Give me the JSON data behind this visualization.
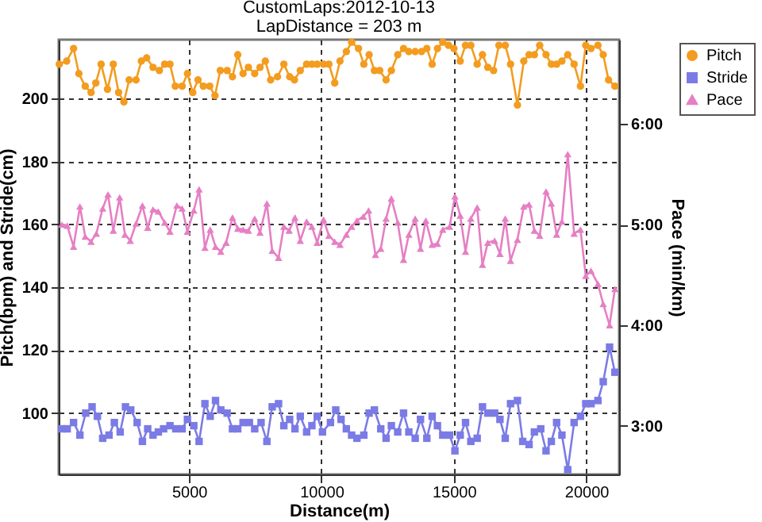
{
  "chart_data": {
    "type": "line",
    "title": "CustomLaps:2012-10-13",
    "subtitle": "LapDistance = 203 m",
    "xlabel": "Distance(m)",
    "ylabel": "Pitch(bpm) and Stride(cm)",
    "y2label": "Pace (min/km)",
    "xlim": [
      80,
      21240
    ],
    "xticks": [
      5000,
      10000,
      15000,
      20000
    ],
    "ylim": [
      80.5,
      218.8
    ],
    "yticks": [
      100,
      120,
      140,
      160,
      180,
      200
    ],
    "y2lim": [
      2.516,
      6.838
    ],
    "y2ticks": [
      {
        "value": 3,
        "label": "3:00"
      },
      {
        "value": 4,
        "label": "4:00"
      },
      {
        "value": 5,
        "label": "5:00"
      },
      {
        "value": 6,
        "label": "6:00"
      }
    ],
    "grid": true,
    "legend": "top right",
    "line_style": "solid",
    "series": [
      {
        "name": "Pitch",
        "color": "#f39c1f",
        "marker": "circle",
        "x": [
          100,
          380,
          640,
          840,
          1080,
          1300,
          1480,
          1680,
          1920,
          2140,
          2340,
          2540,
          2740,
          3000,
          3200,
          3400,
          3640,
          3880,
          4080,
          4280,
          4480,
          4740,
          4940,
          5140,
          5340,
          5540,
          5780,
          5980,
          6180,
          6440,
          6640,
          6840,
          7040,
          7240,
          7480,
          7680,
          7880,
          8080,
          8340,
          8580,
          8800,
          8980,
          9200,
          9440,
          9640,
          9840,
          10080,
          10280,
          10500,
          10700,
          10940,
          11140,
          11400,
          11600,
          11800,
          12000,
          12200,
          12440,
          12640,
          12880,
          13100,
          13300,
          13540,
          13780,
          13980,
          14180,
          14380,
          14580,
          14800,
          15000,
          15240,
          15440,
          15640,
          15880,
          16080,
          16280,
          16500,
          16700,
          16940,
          17140,
          17400,
          17640,
          17840,
          18040,
          18240,
          18480,
          18680,
          18880,
          19080,
          19300,
          19540,
          19780,
          19980,
          20180,
          20440,
          20640,
          20840,
          21080
        ],
        "values": [
          211,
          212,
          216,
          208,
          204,
          202,
          205,
          211,
          203,
          211,
          202,
          199,
          206,
          206,
          212,
          213,
          210,
          209,
          211,
          211,
          204,
          204,
          208,
          202,
          206,
          204,
          204,
          201,
          209,
          209,
          207,
          214,
          208,
          210,
          208,
          210,
          212,
          206,
          207,
          211,
          207,
          206,
          209,
          211,
          211,
          211,
          211,
          211,
          205,
          212,
          215,
          218,
          216,
          211,
          214,
          209,
          209,
          206,
          209,
          214,
          216,
          215,
          215,
          215,
          216,
          211,
          216,
          218,
          217,
          216,
          212,
          217,
          217,
          211,
          214,
          210,
          209,
          217,
          217,
          211,
          198,
          212,
          214,
          214,
          217,
          214,
          211,
          211,
          212,
          214,
          211,
          204,
          217,
          216,
          217,
          214,
          206,
          204
        ]
      },
      {
        "name": "Stride",
        "color": "#7b7be6",
        "marker": "square",
        "x": [
          200,
          400,
          640,
          880,
          1100,
          1340,
          1540,
          1740,
          1980,
          2180,
          2400,
          2600,
          2800,
          3040,
          3240,
          3440,
          3640,
          3840,
          4040,
          4280,
          4500,
          4740,
          4940,
          5180,
          5380,
          5600,
          5800,
          6000,
          6200,
          6440,
          6640,
          6840,
          7040,
          7280,
          7480,
          7720,
          7940,
          8140,
          8380,
          8580,
          8800,
          9000,
          9200,
          9440,
          9640,
          9840,
          10040,
          10340,
          10540,
          10740,
          10940,
          11140,
          11340,
          11600,
          11800,
          12000,
          12240,
          12440,
          12640,
          12880,
          13100,
          13300,
          13540,
          13740,
          13980,
          14180,
          14380,
          14580,
          14840,
          15040,
          15240,
          15440,
          15640,
          15880,
          16080,
          16280,
          16540,
          16740,
          16940,
          17140,
          17400,
          17600,
          17840,
          18040,
          18280,
          18480,
          18680,
          18880,
          19080,
          19300,
          19540,
          19780,
          19980,
          20180,
          20440,
          20640,
          20880,
          21080
        ],
        "values": [
          95,
          95,
          97,
          93,
          100,
          102,
          99,
          92,
          93,
          97,
          94,
          102,
          101,
          97,
          91,
          95,
          93,
          94,
          95,
          96,
          95,
          95,
          98,
          96,
          91,
          103,
          99,
          104,
          101,
          100,
          95,
          95,
          97,
          97,
          95,
          97,
          91,
          102,
          103,
          96,
          98,
          95,
          99,
          94,
          96,
          99,
          94,
          97,
          101,
          98,
          95,
          93,
          92,
          93,
          100,
          101,
          95,
          92,
          96,
          94,
          100,
          94,
          92,
          98,
          92,
          99,
          96,
          93,
          93,
          88,
          93,
          97,
          91,
          92,
          102,
          100,
          100,
          98,
          92,
          103,
          104,
          91,
          90,
          94,
          95,
          88,
          91,
          97,
          93,
          82,
          97,
          99,
          103,
          103,
          104,
          110,
          121,
          113
        ]
      },
      {
        "name": "Pace",
        "color": "#e67fc4",
        "marker": "triangle",
        "axis": "y2",
        "x": [
          200,
          400,
          640,
          880,
          1080,
          1300,
          1500,
          1740,
          1940,
          2140,
          2380,
          2580,
          2780,
          3000,
          3240,
          3440,
          3640,
          3840,
          4080,
          4280,
          4540,
          4740,
          4940,
          5180,
          5380,
          5600,
          5800,
          6000,
          6200,
          6400,
          6640,
          6840,
          7040,
          7240,
          7480,
          7680,
          7940,
          8140,
          8380,
          8580,
          8780,
          9000,
          9200,
          9440,
          9640,
          9840,
          10080,
          10280,
          10500,
          10700,
          10940,
          11140,
          11340,
          11580,
          11780,
          12040,
          12240,
          12440,
          12640,
          12880,
          13100,
          13300,
          13540,
          13740,
          13940,
          14180,
          14380,
          14580,
          14840,
          15040,
          15240,
          15440,
          15640,
          15880,
          16080,
          16280,
          16540,
          16740,
          16940,
          17140,
          17400,
          17640,
          17840,
          18040,
          18240,
          18480,
          18680,
          18880,
          19080,
          19300,
          19540,
          19780,
          19980,
          20180,
          20440,
          20640,
          20880,
          21080
        ],
        "values": [
          5.0,
          4.99,
          4.78,
          5.18,
          4.88,
          4.83,
          4.91,
          5.16,
          5.3,
          4.94,
          5.27,
          4.9,
          4.84,
          5.01,
          5.19,
          4.97,
          5.15,
          5.13,
          5.02,
          4.93,
          5.19,
          5.16,
          4.93,
          5.14,
          5.35,
          4.77,
          4.95,
          4.78,
          4.73,
          4.82,
          5.07,
          4.96,
          4.95,
          4.94,
          5.06,
          4.92,
          5.21,
          4.74,
          4.67,
          4.98,
          4.94,
          5.07,
          4.84,
          5.03,
          4.98,
          4.82,
          5.05,
          4.89,
          4.83,
          4.8,
          4.9,
          4.98,
          5.04,
          5.08,
          5.14,
          4.7,
          4.76,
          5.06,
          5.26,
          5.02,
          4.65,
          4.9,
          5.06,
          4.76,
          5.04,
          4.8,
          4.81,
          4.95,
          4.98,
          5.28,
          5.09,
          4.73,
          5.06,
          5.17,
          4.6,
          4.82,
          4.84,
          4.71,
          5.06,
          4.64,
          4.85,
          5.18,
          5.2,
          4.94,
          4.89,
          5.33,
          5.21,
          4.9,
          5.03,
          5.7,
          4.91,
          4.95,
          4.49,
          4.54,
          4.41,
          4.21,
          4.0,
          4.36
        ]
      }
    ]
  }
}
